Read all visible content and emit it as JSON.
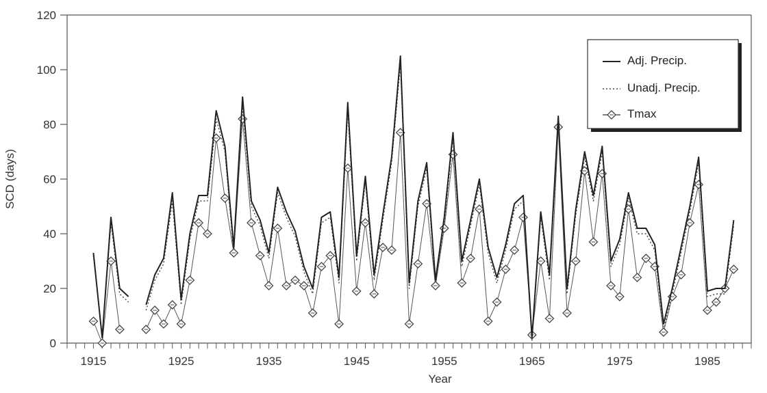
{
  "chart_data": {
    "type": "line",
    "title": "",
    "xlabel": "Year",
    "ylabel": "SCD (days)",
    "xlim": [
      1912,
      1990
    ],
    "ylim": [
      0,
      120
    ],
    "x_ticks": [
      1915,
      1925,
      1935,
      1945,
      1955,
      1965,
      1975,
      1985
    ],
    "x_tick_labels": [
      "1915",
      "1925",
      "1935",
      "1945",
      "1955",
      "1965",
      "1975",
      "1985"
    ],
    "y_ticks": [
      0,
      20,
      40,
      60,
      80,
      100,
      120
    ],
    "y_tick_labels": [
      "0",
      "20",
      "40",
      "60",
      "80",
      "100",
      "120"
    ],
    "grid": false,
    "legend_position": "top-right",
    "series": [
      {
        "name": "Adj. Precip.",
        "style": "solid",
        "color": "#222222",
        "segments": [
          {
            "x": [
              1915,
              1916,
              1917,
              1918,
              1919
            ],
            "y": [
              33,
              2,
              46,
              20,
              17
            ]
          },
          {
            "x": [
              1921,
              1922,
              1923,
              1924,
              1925,
              1926,
              1927,
              1928,
              1929,
              1930,
              1931,
              1932,
              1933,
              1934,
              1935,
              1936,
              1937,
              1938,
              1939,
              1940,
              1941,
              1942,
              1943,
              1944,
              1945,
              1946,
              1947,
              1948,
              1949,
              1950,
              1951,
              1952,
              1953,
              1954,
              1955,
              1956,
              1957,
              1958,
              1959,
              1960,
              1961,
              1962,
              1963,
              1964,
              1965,
              1966,
              1967,
              1968,
              1969,
              1970,
              1971,
              1972,
              1973,
              1974,
              1975,
              1976,
              1977,
              1978,
              1979,
              1980,
              1981,
              1982,
              1983,
              1984,
              1985,
              1986,
              1987,
              1988
            ],
            "y": [
              14,
              25,
              31,
              55,
              16,
              40,
              54,
              54,
              85,
              72,
              35,
              90,
              52,
              45,
              33,
              57,
              48,
              41,
              28,
              20,
              46,
              48,
              24,
              88,
              32,
              61,
              25,
              47,
              68,
              105,
              22,
              52,
              66,
              23,
              46,
              77,
              30,
              45,
              60,
              35,
              24,
              36,
              51,
              54,
              2,
              48,
              25,
              83,
              20,
              49,
              70,
              54,
              72,
              30,
              38,
              55,
              42,
              42,
              36,
              7,
              20,
              35,
              50,
              68,
              19,
              20,
              20,
              45
            ]
          }
        ]
      },
      {
        "name": "Unadj. Precip.",
        "style": "dotted",
        "color": "#444444",
        "segments": [
          {
            "x": [
              1915,
              1916,
              1917,
              1918,
              1919
            ],
            "y": [
              32,
              2,
              44,
              18,
              15
            ]
          },
          {
            "x": [
              1921,
              1922,
              1923,
              1924,
              1925,
              1926,
              1927,
              1928,
              1929,
              1930,
              1931,
              1932,
              1933,
              1934,
              1935,
              1936,
              1937,
              1938,
              1939,
              1940,
              1941,
              1942,
              1943,
              1944,
              1945,
              1946,
              1947,
              1948,
              1949,
              1950,
              1951,
              1952,
              1953,
              1954,
              1955,
              1956,
              1957,
              1958,
              1959,
              1960,
              1961,
              1962,
              1963,
              1964,
              1965,
              1966,
              1967,
              1968,
              1969,
              1970,
              1971,
              1972,
              1973,
              1974,
              1975,
              1976,
              1977,
              1978,
              1979,
              1980,
              1981,
              1982,
              1983,
              1984,
              1985,
              1986,
              1987,
              1988
            ],
            "y": [
              12,
              23,
              29,
              52,
              14,
              38,
              52,
              52,
              82,
              70,
              33,
              87,
              50,
              43,
              31,
              55,
              46,
              39,
              26,
              18,
              44,
              46,
              22,
              85,
              30,
              59,
              23,
              45,
              66,
              102,
              20,
              50,
              64,
              21,
              44,
              75,
              28,
              43,
              58,
              33,
              22,
              34,
              49,
              52,
              1,
              46,
              23,
              81,
              18,
              47,
              68,
              52,
              70,
              28,
              36,
              53,
              40,
              40,
              34,
              5,
              18,
              33,
              48,
              66,
              17,
              18,
              18,
              43
            ]
          }
        ]
      },
      {
        "name": "Tmax",
        "style": "solid-marker",
        "color": "#555555",
        "marker": "diamond",
        "x": [
          1915,
          1916,
          1917,
          1918,
          1921,
          1922,
          1923,
          1924,
          1925,
          1926,
          1927,
          1928,
          1929,
          1930,
          1931,
          1932,
          1933,
          1934,
          1935,
          1936,
          1937,
          1938,
          1939,
          1940,
          1941,
          1942,
          1943,
          1944,
          1945,
          1946,
          1947,
          1948,
          1949,
          1950,
          1951,
          1952,
          1953,
          1954,
          1955,
          1956,
          1957,
          1958,
          1959,
          1960,
          1961,
          1962,
          1963,
          1964,
          1965,
          1966,
          1967,
          1968,
          1969,
          1970,
          1971,
          1972,
          1973,
          1974,
          1975,
          1976,
          1977,
          1978,
          1979,
          1980,
          1981,
          1982,
          1983,
          1984,
          1985,
          1986,
          1987,
          1988
        ],
        "y": [
          8,
          0,
          30,
          5,
          5,
          12,
          7,
          14,
          7,
          23,
          44,
          40,
          75,
          53,
          33,
          82,
          44,
          32,
          21,
          42,
          21,
          23,
          21,
          11,
          28,
          32,
          7,
          64,
          19,
          44,
          18,
          35,
          34,
          77,
          7,
          29,
          51,
          21,
          42,
          69,
          22,
          31,
          49,
          8,
          15,
          27,
          34,
          46,
          3,
          30,
          9,
          79,
          11,
          30,
          63,
          37,
          62,
          21,
          17,
          49,
          24,
          31,
          28,
          4,
          17,
          25,
          44,
          58,
          12,
          15,
          20,
          27
        ]
      }
    ]
  }
}
